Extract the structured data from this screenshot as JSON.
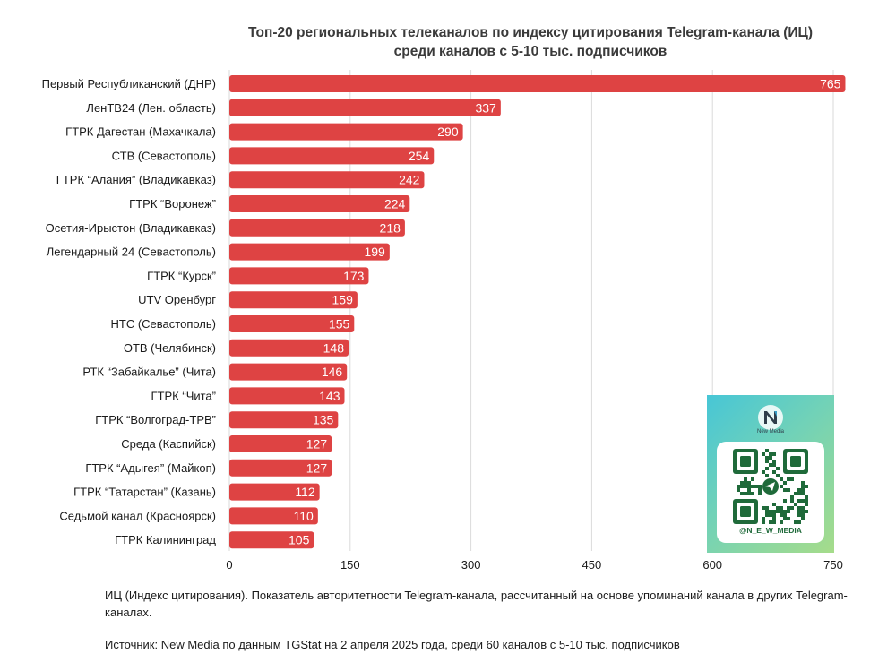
{
  "title_lines": [
    "Топ-20 региональных телеканалов по индексу цитирования Telegram-канала (ИЦ)",
    "среди каналов с 5-10 тыс. подписчиков"
  ],
  "chart_data": {
    "type": "bar",
    "orientation": "horizontal",
    "title": "Топ-20 региональных телеканалов по индексу цитирования Telegram-канала (ИЦ) среди каналов с 5-10 тыс. подписчиков",
    "categories": [
      "Первый Республиканский (ДНР)",
      "ЛенТВ24 (Лен. область)",
      "ГТРК Дагестан (Махачкала)",
      "СТВ (Севастополь)",
      "ГТРК “Алания” (Владикавказ)",
      "ГТРК “Воронеж”",
      "Осетия-Ирыстон (Владикавказ)",
      "Легендарный 24 (Севастополь)",
      "ГТРК “Курск”",
      "UTV Оренбург",
      "НТС (Севастополь)",
      "ОТВ (Челябинск)",
      "РТК “Забайкалье” (Чита)",
      "ГТРК “Чита”",
      "ГТРК “Волгоград-ТРВ”",
      "Среда (Каспийск)",
      "ГТРК “Адыгея” (Майкоп)",
      "ГТРК “Татарстан” (Казань)",
      "Седьмой канал (Красноярск)",
      "ГТРК Калининград"
    ],
    "values": [
      765,
      337,
      290,
      254,
      242,
      224,
      218,
      199,
      173,
      159,
      155,
      148,
      146,
      143,
      135,
      127,
      127,
      112,
      110,
      105
    ],
    "xlim": [
      0,
      750
    ],
    "xticks": [
      0,
      150,
      300,
      450,
      600,
      750
    ],
    "grid": true,
    "bar_color": "#de4343",
    "value_label_color": "#ffffff"
  },
  "footnote": "ИЦ (Индекс цитирования). Показатель авторитетности Telegram-канала, рассчитанный на основе упоминаний канала в других Telegram-каналах.",
  "source": "Источник: New Media по данным TGStat на 2 апреля 2025 года, среди 60 каналов с 5-10 тыс. подписчиков",
  "qr_card": {
    "logo_icon": "new-media-logo",
    "logo_text": "New Media",
    "handle": "@N_E_W_MEDIA",
    "gradient": [
      "#47c6d6",
      "#a6dc8a"
    ]
  }
}
